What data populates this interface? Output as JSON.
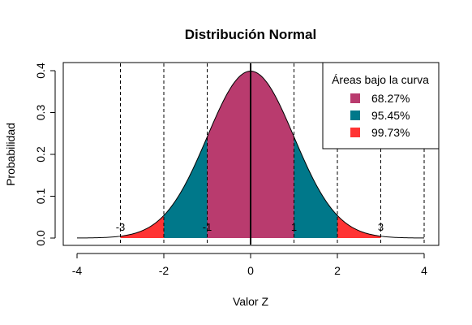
{
  "chart_data": {
    "type": "area",
    "title": "Distribución Normal",
    "xlabel": "Valor Z",
    "ylabel": "Probabilidad",
    "xlim": [
      -4,
      4
    ],
    "ylim": [
      0,
      0.4
    ],
    "x_ticks": [
      "-4",
      "-2",
      "0",
      "2",
      "4"
    ],
    "y_ticks": [
      "0.0",
      "0.1",
      "0.2",
      "0.3",
      "0.4"
    ],
    "grid": false,
    "distribution": {
      "mean": 0,
      "sd": 1
    },
    "shaded_regions": [
      {
        "label": "68.27%",
        "from": -1,
        "to": 1,
        "color": "#B93B6E"
      },
      {
        "label": "95.45%",
        "from": -2,
        "to": 2,
        "color": "#00788A"
      },
      {
        "label": "99.73%",
        "from": -3,
        "to": 3,
        "color": "#FF3333"
      }
    ],
    "dashed_lines_x": [
      -3,
      -2,
      -1,
      1,
      2,
      3,
      4
    ],
    "mean_line_x": 0,
    "annotations": [
      {
        "x": -3,
        "text": "-3"
      },
      {
        "x": -1,
        "text": "-1"
      },
      {
        "x": 1,
        "text": "1"
      },
      {
        "x": 3,
        "text": "3"
      }
    ],
    "legend": {
      "title": "Áreas bajo la curva",
      "position": "top-right",
      "entries": [
        {
          "label": "68.27%",
          "color": "#B93B6E"
        },
        {
          "label": "95.45%",
          "color": "#00788A"
        },
        {
          "label": "99.73%",
          "color": "#FF3333"
        }
      ]
    }
  }
}
